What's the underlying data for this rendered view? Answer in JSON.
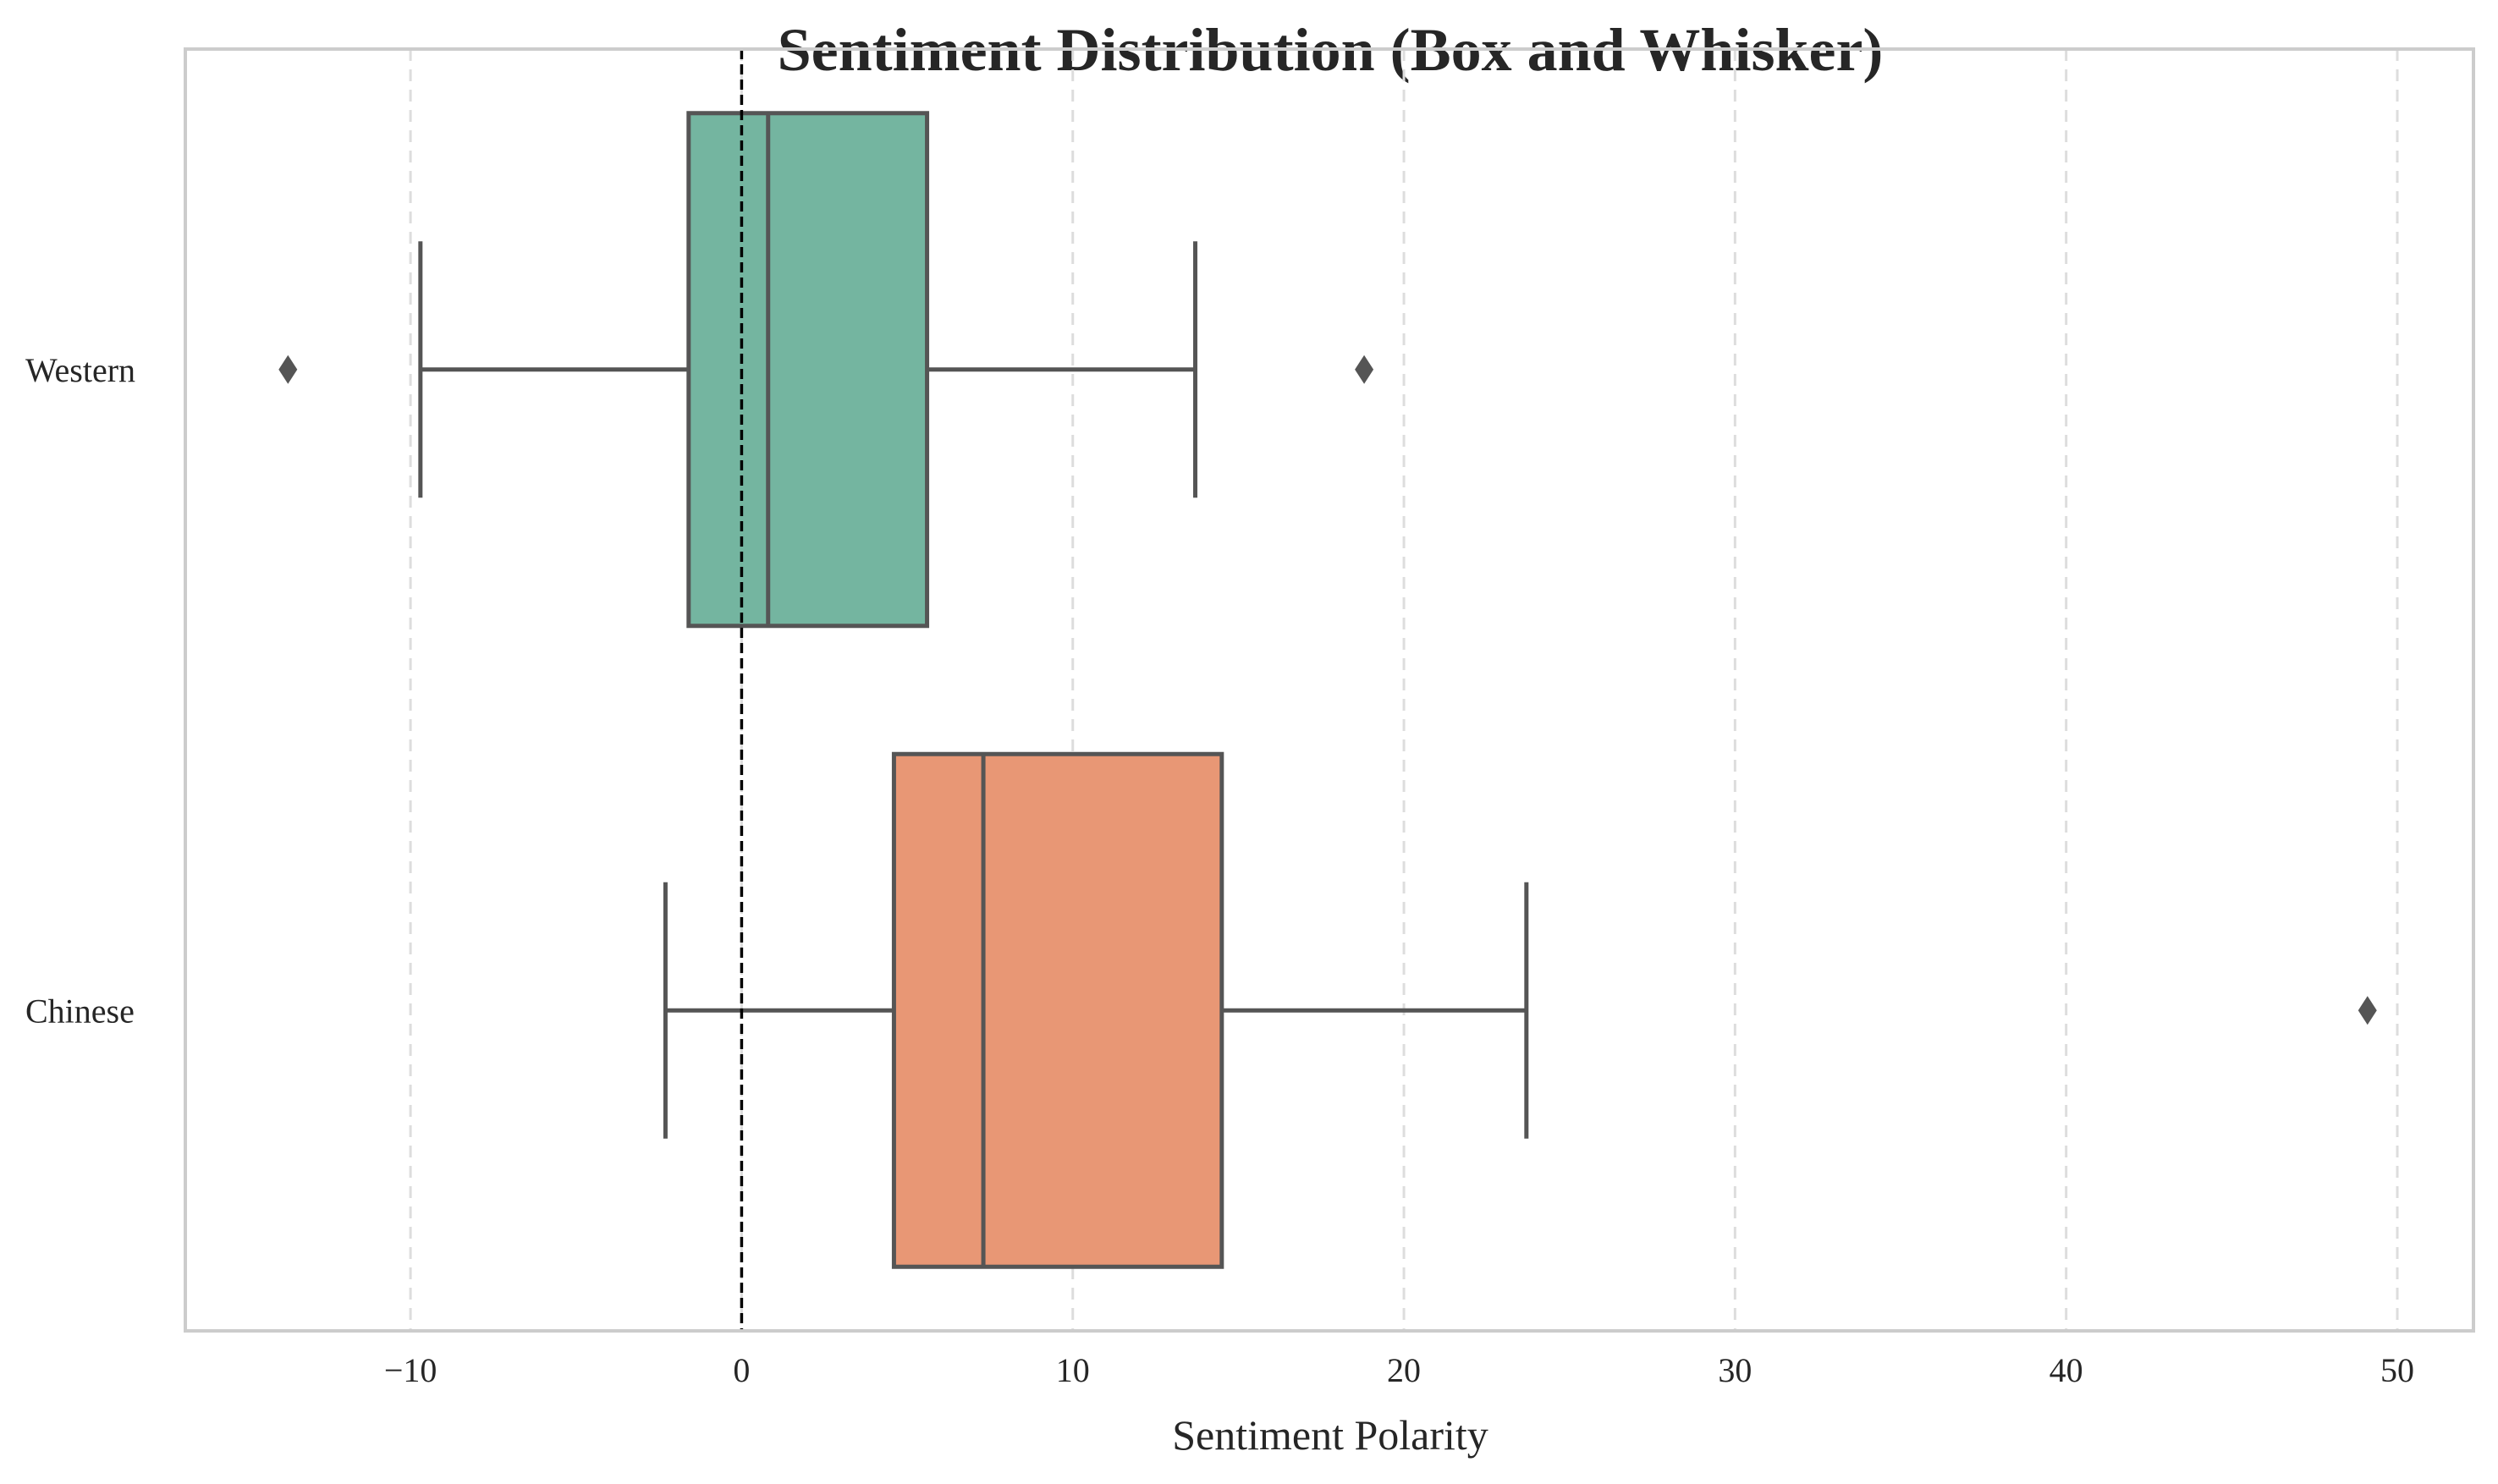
{
  "chart_data": {
    "type": "box",
    "title": "Sentiment Distribution (Box and Whisker)",
    "xlabel": "Sentiment Polarity",
    "ylabel": "",
    "xlim": [
      -16.8,
      52.3
    ],
    "xticks": [
      -10,
      0,
      10,
      20,
      30,
      40,
      50
    ],
    "xtick_labels": [
      "−10",
      "0",
      "10",
      "20",
      "30",
      "40",
      "50"
    ],
    "grid": "vertical dashed",
    "reference_line": {
      "x": 0,
      "style": "dashed",
      "color": "#000000"
    },
    "categories": [
      "Western",
      "Chinese"
    ],
    "series": [
      {
        "category": "Western",
        "color": "#74b5a0",
        "whisker_low": -9.7,
        "q1": -1.6,
        "median": 0.8,
        "q3": 5.6,
        "whisker_high": 13.7,
        "outliers": [
          -13.7,
          18.8
        ]
      },
      {
        "category": "Chinese",
        "color": "#e89775",
        "whisker_low": -2.3,
        "q1": 4.6,
        "median": 7.3,
        "q3": 14.5,
        "whisker_high": 23.7,
        "outliers": [
          49.1
        ]
      }
    ]
  }
}
